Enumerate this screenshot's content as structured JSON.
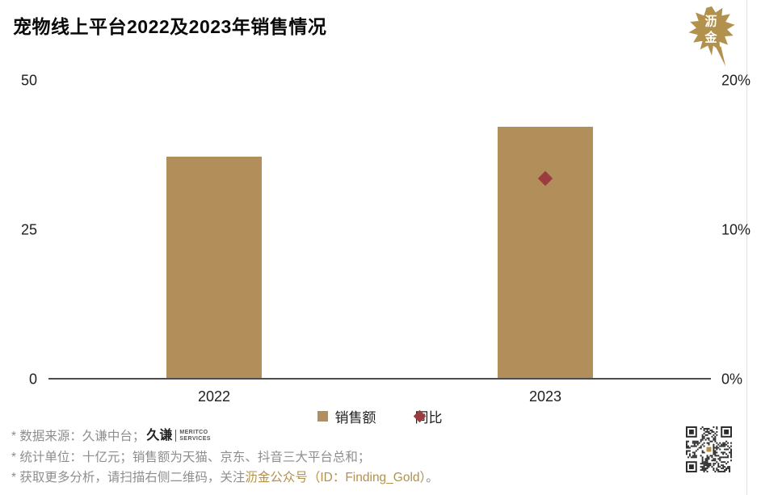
{
  "brand": {
    "logo_char_top": "沥",
    "logo_char_bottom": "金"
  },
  "chart_data": {
    "type": "bar",
    "title": "宠物线上平台2022及2023年销售情况",
    "categories": [
      "2022",
      "2023"
    ],
    "series": [
      {
        "name": "销售额",
        "kind": "bar",
        "axis": "left",
        "color": "#b28e5a",
        "values": [
          37.2,
          42.3
        ]
      },
      {
        "name": "同比",
        "kind": "point",
        "axis": "right",
        "color": "#9a3c40",
        "values": [
          null,
          13.4
        ]
      }
    ],
    "left_axis": {
      "min": 0,
      "max": 50,
      "ticks": [
        50,
        25,
        0
      ],
      "tick_labels": [
        "50",
        "25",
        "0"
      ]
    },
    "right_axis": {
      "min": 0,
      "max": 20,
      "ticks": [
        20,
        10,
        0
      ],
      "tick_labels": [
        "20%",
        "10%",
        "0%"
      ]
    },
    "legend": [
      {
        "label": "销售额",
        "marker": "square",
        "color": "#b28e5a"
      },
      {
        "label": "同比",
        "marker": "diamond",
        "color": "#9a3c40"
      }
    ],
    "grid": false,
    "legend_position": "bottom",
    "unit": "十亿元"
  },
  "footnotes": {
    "line1_prefix": "* 数据来源：久谦中台；",
    "meritco_cn": "久谦",
    "meritco_en1": "MERITCO",
    "meritco_en2": "SERVICES",
    "line2": "* 统计单位：十亿元；销售额为天猫、京东、抖音三大平台总和；",
    "line3_prefix": "* 获取更多分析，请扫描右侧二维码，关注",
    "line3_gold": "沥金公众号（ID：Finding_Gold）",
    "line3_suffix": "。"
  },
  "colors": {
    "bar": "#b28e5a",
    "point": "#9a3c40",
    "gold_text": "#b2914d",
    "footnote_gray": "#8e8e8e"
  }
}
